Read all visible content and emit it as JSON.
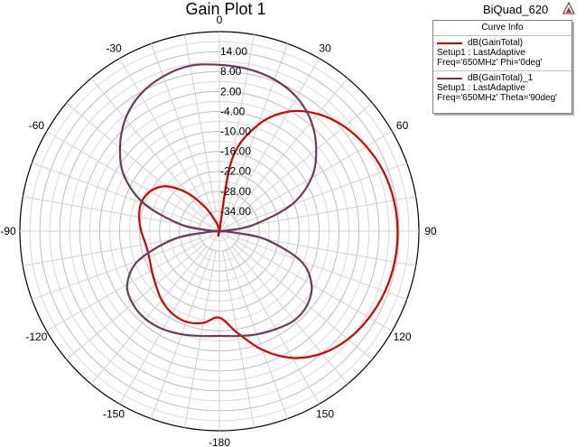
{
  "header": {
    "title": "Gain Plot 1",
    "design_name": "BiQuad_620",
    "logo_icon": "hfss-logo-icon"
  },
  "legend": {
    "title": "Curve Info",
    "entries": [
      {
        "name": "dB(GainTotal)",
        "line1": "Setup1 : LastAdaptive",
        "line2": "Freq='650MHz' Phi='0deg'",
        "color": "#d40000"
      },
      {
        "name": "dB(GainTotal)_1",
        "line1": "Setup1 : LastAdaptive",
        "line2": "Freq='650MHz' Theta='90deg'",
        "color": "#6b3a5e"
      }
    ]
  },
  "chart_data": {
    "type": "polar",
    "title": "Gain Plot 1",
    "angle_unit": "deg",
    "angle_direction": "clockwise, 0 at top",
    "radial_range": [
      -40,
      20
    ],
    "radial_ticks": [
      14.0,
      8.0,
      2.0,
      -4.0,
      -10.0,
      -16.0,
      -22.0,
      -28.0,
      -34.0
    ],
    "radial_tick_labels": [
      "14.00",
      "8.00",
      "2.00",
      "-4.00",
      "-10.00",
      "-16.00",
      "-22.00",
      "-28.00",
      "-34.00"
    ],
    "angle_ticks": [
      0,
      30,
      60,
      90,
      120,
      150,
      180,
      -150,
      -120,
      -90,
      -60,
      -30
    ],
    "angle_tick_labels": [
      "0",
      "30",
      "60",
      "90",
      "120",
      "150",
      "-180",
      "-150",
      "-120",
      "-90",
      "-60",
      "-30"
    ],
    "grid": true,
    "legend_position": "top-right",
    "series": [
      {
        "name": "dB(GainTotal)",
        "color": "#d40000",
        "theta": [
          0,
          10,
          20,
          30,
          40,
          50,
          60,
          70,
          80,
          90,
          100,
          110,
          120,
          130,
          140,
          150,
          160,
          170,
          180,
          -170,
          -160,
          -150,
          -140,
          -130,
          -120,
          -110,
          -100,
          -90,
          -80,
          -70,
          -60,
          -50,
          -40,
          -30,
          -20,
          -10
        ],
        "r": [
          -40,
          -18,
          -6,
          1.5,
          6,
          9,
          11,
          12.5,
          13.3,
          13.6,
          13.5,
          13,
          12,
          10.5,
          8,
          4,
          -2,
          -9,
          -14,
          -12,
          -11,
          -11.5,
          -13,
          -15,
          -16.5,
          -17.5,
          -17.5,
          -16.5,
          -15.5,
          -15,
          -16,
          -19,
          -25,
          -32,
          -37,
          -39
        ]
      },
      {
        "name": "dB(GainTotal)_1",
        "color": "#6b3a5e",
        "theta": [
          0,
          10,
          20,
          30,
          40,
          50,
          60,
          70,
          80,
          85,
          90,
          95,
          100,
          110,
          120,
          130,
          140,
          150,
          160,
          170,
          180,
          -170,
          -160,
          -150,
          -140,
          -130,
          -120,
          -110,
          -100,
          -95,
          -90,
          -85,
          -80,
          -70,
          -60,
          -50,
          -40,
          -30,
          -20,
          -10
        ],
        "r": [
          10,
          9.5,
          8.5,
          6.5,
          3,
          -2,
          -8,
          -17,
          -30,
          -38,
          -40,
          -36,
          -26,
          -14,
          -8,
          -5.5,
          -5,
          -6,
          -7,
          -8,
          -8.5,
          -8,
          -7,
          -6,
          -5.5,
          -6,
          -8,
          -14,
          -26,
          -36,
          -40,
          -36,
          -28,
          -16,
          -7,
          -1,
          4,
          7.5,
          9.5,
          10.5
        ]
      }
    ]
  }
}
